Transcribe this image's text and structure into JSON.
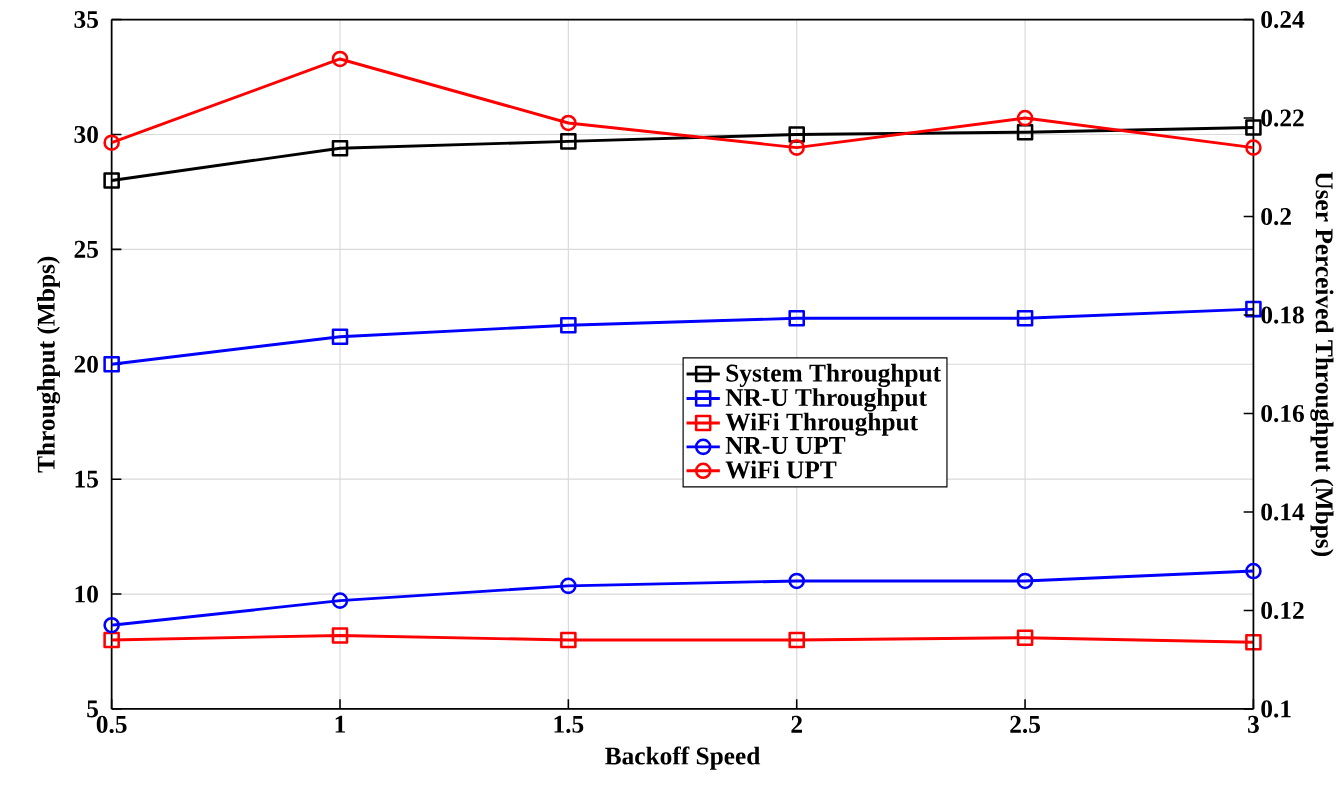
{
  "chart_data": {
    "type": "line",
    "xlabel": "Backoff Speed",
    "ylabel": "Throughput (Mbps)",
    "y2label": "User Perceived Throughput (Mbps)",
    "x": [
      0.5,
      1,
      1.5,
      2,
      2.5,
      3
    ],
    "xlim": [
      0.5,
      3
    ],
    "xticks": [
      0.5,
      1,
      1.5,
      2,
      2.5,
      3
    ],
    "ylim": [
      5,
      35
    ],
    "yticks": [
      5,
      10,
      15,
      20,
      25,
      30,
      35
    ],
    "y2lim": [
      0.1,
      0.24
    ],
    "y2ticks": [
      0.1,
      0.12,
      0.14,
      0.16,
      0.18,
      0.2,
      0.22,
      0.24
    ],
    "grid": true,
    "legend": "right",
    "line_style": "solid",
    "series": [
      {
        "name": "System Throughput",
        "color": "#000000",
        "marker": "square",
        "axis": "y",
        "values": [
          28.0,
          29.4,
          29.7,
          30.0,
          30.1,
          30.3
        ]
      },
      {
        "name": "NR-U Throughput",
        "color": "#0000ff",
        "marker": "square",
        "axis": "y",
        "values": [
          20.0,
          21.2,
          21.7,
          22.0,
          22.0,
          22.4
        ]
      },
      {
        "name": "WiFi Throughput",
        "color": "#ff0000",
        "marker": "square",
        "axis": "y",
        "values": [
          8.0,
          8.2,
          8.0,
          8.0,
          8.1,
          7.9
        ]
      },
      {
        "name": "NR-U UPT",
        "color": "#0000ff",
        "marker": "circle",
        "axis": "y2",
        "values": [
          0.117,
          0.122,
          0.125,
          0.126,
          0.126,
          0.128
        ]
      },
      {
        "name": "WiFi UPT",
        "color": "#ff0000",
        "marker": "circle",
        "axis": "y2",
        "values": [
          0.215,
          0.232,
          0.219,
          0.214,
          0.22,
          0.214
        ]
      }
    ]
  }
}
